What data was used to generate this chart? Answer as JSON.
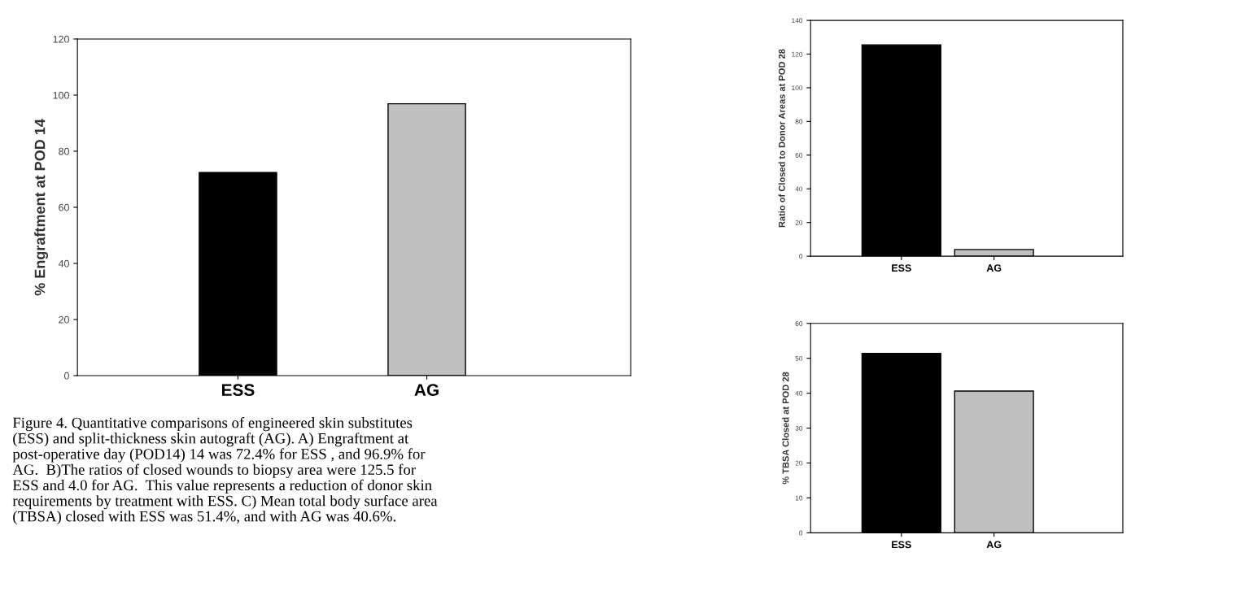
{
  "chart_data": [
    {
      "type": "bar",
      "ylabel": "% Engraftment at POD 14",
      "categories": [
        "ESS",
        "AG"
      ],
      "values": [
        72.4,
        96.9
      ],
      "colors": [
        "#000000",
        "#c0c0c0"
      ],
      "ylim": [
        0,
        120
      ],
      "yticks": [
        0,
        20,
        40,
        60,
        80,
        100,
        120
      ],
      "grid": false,
      "annotations": [
        "Figure 4. Quantitative comparisons of engineered skin substitutes\n(ESS) and split-thickness skin autograft (AG). A) Engraftment at\npost-operative day (POD14) 14 was 72.4% for ESS , and 96.9% for\nAG.  B)The ratios of closed wounds to biopsy area were 125.5 for\nESS and 4.0 for AG.  This value represents a reduction of donor skin\nrequirements by treatment with ESS. C) Mean total body surface area\n(TBSA) closed with ESS was 51.4%, and with AG was 40.6%."
      ]
    },
    {
      "type": "bar",
      "ylabel": "Ratio of Closed to Donor Areas at POD 28",
      "categories": [
        "ESS",
        "AG"
      ],
      "values": [
        125.5,
        4.0
      ],
      "colors": [
        "#000000",
        "#c0c0c0"
      ],
      "ylim": [
        0,
        140
      ],
      "yticks": [
        0,
        20,
        40,
        60,
        80,
        100,
        120,
        140
      ],
      "grid": false
    },
    {
      "type": "bar",
      "ylabel": "% TBSA Closed at POD 28",
      "categories": [
        "ESS",
        "AG"
      ],
      "values": [
        51.4,
        40.6
      ],
      "colors": [
        "#000000",
        "#c0c0c0"
      ],
      "ylim": [
        0,
        60
      ],
      "yticks": [
        0,
        10,
        20,
        30,
        40,
        50,
        60
      ],
      "grid": false
    }
  ]
}
